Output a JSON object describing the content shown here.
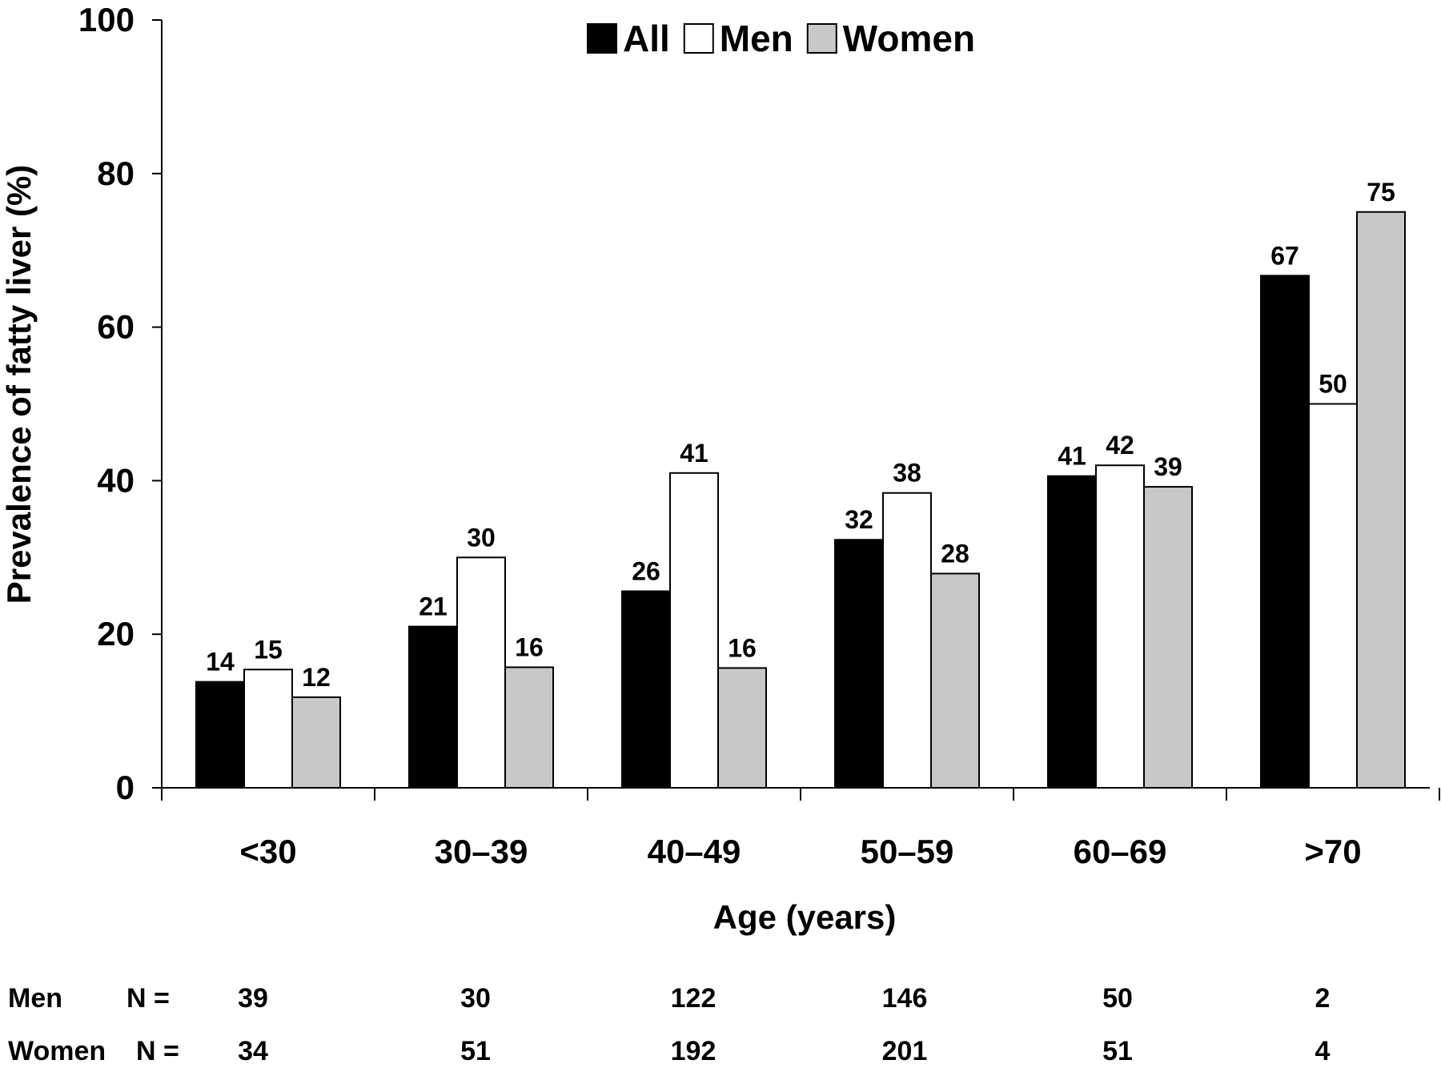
{
  "chart_data": {
    "type": "bar",
    "categories": [
      "<30",
      "30–39",
      "40–49",
      "50–59",
      "60–69",
      ">70"
    ],
    "series": [
      {
        "name": "All",
        "values": [
          14,
          21,
          26,
          32,
          41,
          67
        ],
        "color": "#000000"
      },
      {
        "name": "Men",
        "values": [
          15,
          30,
          41,
          38,
          42,
          50
        ],
        "color": "#ffffff"
      },
      {
        "name": "Women",
        "values": [
          12,
          16,
          16,
          28,
          39,
          75
        ],
        "color": "#c8c8c8"
      }
    ],
    "bar_values_precise": {
      "All": [
        13.8,
        21.0,
        25.6,
        32.3,
        40.6,
        66.7
      ],
      "Men": [
        15.4,
        30.0,
        41.0,
        38.4,
        42.0,
        50.0
      ],
      "Women": [
        11.8,
        15.7,
        15.6,
        27.9,
        39.2,
        75.0
      ]
    },
    "xlabel": "Age (years)",
    "ylabel": "Prevalence of fatty liver (%)",
    "ylim": [
      0,
      100
    ],
    "yticks": [
      0,
      20,
      40,
      60,
      80,
      100
    ],
    "legend_position": "top-center",
    "grid": false
  },
  "sample_sizes": {
    "men_label": "Men",
    "women_label": "Women",
    "n_label": "N =",
    "men": [
      "39",
      "30",
      "122",
      "146",
      "50",
      "2"
    ],
    "women": [
      "34",
      "51",
      "192",
      "201",
      "51",
      "4"
    ]
  }
}
